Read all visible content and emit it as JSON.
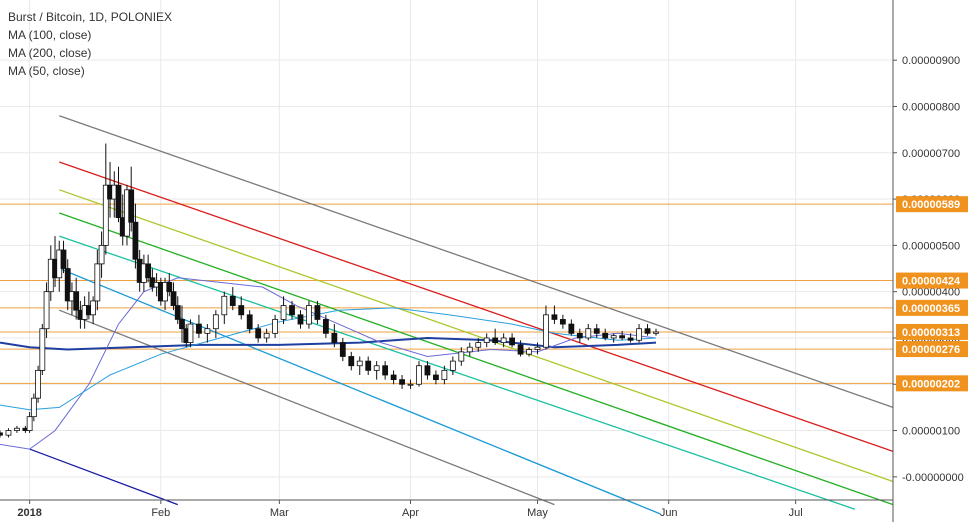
{
  "legend": {
    "title": "Burst / Bitcoin, 1D, POLONIEX",
    "ma100": "MA (100, close)",
    "ma200": "MA (200, close)",
    "ma50": "MA (50, close)"
  },
  "colors": {
    "up": "#ffffff",
    "down": "#111111",
    "candle_border": "#111111",
    "grid": "#e9e9e9",
    "hline": "#f0a040",
    "tag": "#f0921e",
    "ma100": "#1f3fa0",
    "ma50": "#6a6ad8",
    "ma200": "#2a9fe0",
    "channel_gray": "#7a7a7a",
    "fan_red": "#d91c1c",
    "fan_yellowgreen": "#a8c82c",
    "fan_green": "#22b022",
    "fan_teal": "#1cc0a0",
    "fan_blue": "#1a9ad6",
    "navy": "#1a1aa8"
  },
  "chart_data": {
    "type": "candlestick",
    "title": "Burst / Bitcoin, 1D, POLONIEX",
    "y_axis": {
      "ticks": [
        "0.00000900",
        "0.00000800",
        "0.00000700",
        "0.00000600",
        "0.00000500",
        "0.00000400",
        "0.00000300",
        "0.00000200",
        "0.00000100",
        "-0.00000000"
      ],
      "tick_values": [
        9,
        8,
        7,
        6,
        5,
        4,
        3,
        2,
        1,
        0
      ],
      "unit_scale": "1e-6 BTC",
      "range": [
        -0.5,
        10.3
      ]
    },
    "x_axis": {
      "labels": [
        "2018",
        "Feb",
        "Mar",
        "Apr",
        "May",
        "Jun",
        "Jul"
      ],
      "bold_labels": [
        "2018"
      ],
      "start_date": "2017-12-25",
      "end_date": "2018-07-24"
    },
    "price_lines": [
      {
        "value": 5.89,
        "label": "0.00000589"
      },
      {
        "value": 4.24,
        "label": "0.00000424"
      },
      {
        "value": 3.65,
        "label": "0.00000365"
      },
      {
        "value": 3.13,
        "label": "0.00000313"
      },
      {
        "value": 2.76,
        "label": "0.00000276"
      },
      {
        "value": 2.02,
        "label": "0.00000202"
      }
    ],
    "trend_lines": [
      {
        "color": "channel_gray",
        "from": {
          "date": "2018-01-08",
          "value": 7.8
        },
        "to": {
          "date": "2018-07-24",
          "value": 1.5
        }
      },
      {
        "color": "channel_gray",
        "from": {
          "date": "2018-01-08",
          "value": 3.6
        },
        "to": {
          "date": "2018-05-05",
          "value": -0.6
        }
      },
      {
        "color": "fan_red",
        "from": {
          "date": "2018-01-08",
          "value": 6.8
        },
        "to": {
          "date": "2018-07-24",
          "value": 0.55
        }
      },
      {
        "color": "fan_yellowgreen",
        "from": {
          "date": "2018-01-08",
          "value": 6.2
        },
        "to": {
          "date": "2018-07-24",
          "value": -0.1
        }
      },
      {
        "color": "fan_green",
        "from": {
          "date": "2018-01-08",
          "value": 5.7
        },
        "to": {
          "date": "2018-07-24",
          "value": -0.6
        }
      },
      {
        "color": "fan_teal",
        "from": {
          "date": "2018-01-08",
          "value": 5.2
        },
        "to": {
          "date": "2018-07-15",
          "value": -0.7
        }
      },
      {
        "color": "fan_blue",
        "from": {
          "date": "2018-01-08",
          "value": 4.5
        },
        "to": {
          "date": "2018-05-30",
          "value": -0.8
        }
      },
      {
        "color": "navy",
        "from": {
          "date": "2018-01-01",
          "value": 0.6
        },
        "to": {
          "date": "2018-02-05",
          "value": -0.6
        }
      }
    ],
    "ma_series": [
      {
        "name": "MA (100, close)",
        "color": "ma100",
        "width": 2,
        "points": [
          [
            "2017-12-25",
            2.9
          ],
          [
            "2018-01-01",
            2.8
          ],
          [
            "2018-01-10",
            2.75
          ],
          [
            "2018-01-25",
            2.8
          ],
          [
            "2018-02-10",
            2.85
          ],
          [
            "2018-03-01",
            2.85
          ],
          [
            "2018-03-20",
            2.9
          ],
          [
            "2018-04-05",
            3.0
          ],
          [
            "2018-04-20",
            2.95
          ],
          [
            "2018-05-05",
            2.8
          ],
          [
            "2018-05-20",
            2.85
          ],
          [
            "2018-05-29",
            2.9
          ]
        ]
      },
      {
        "name": "MA (50, close)",
        "color": "ma50",
        "width": 1,
        "points": [
          [
            "2017-12-25",
            0.7
          ],
          [
            "2018-01-01",
            0.6
          ],
          [
            "2018-01-07",
            1.0
          ],
          [
            "2018-01-15",
            2.0
          ],
          [
            "2018-01-22",
            3.3
          ],
          [
            "2018-01-28",
            4.0
          ],
          [
            "2018-02-05",
            4.3
          ],
          [
            "2018-02-15",
            4.2
          ],
          [
            "2018-02-25",
            4.1
          ],
          [
            "2018-03-05",
            3.7
          ],
          [
            "2018-03-15",
            3.3
          ],
          [
            "2018-03-25",
            2.9
          ],
          [
            "2018-04-05",
            2.6
          ],
          [
            "2018-04-20",
            2.75
          ],
          [
            "2018-05-01",
            2.7
          ],
          [
            "2018-05-10",
            3.0
          ],
          [
            "2018-05-20",
            3.1
          ],
          [
            "2018-05-29",
            3.0
          ]
        ]
      },
      {
        "name": "MA (200, close)",
        "color": "ma200",
        "width": 1,
        "points": [
          [
            "2017-12-25",
            1.55
          ],
          [
            "2018-01-01",
            1.45
          ],
          [
            "2018-01-08",
            1.5
          ],
          [
            "2018-01-20",
            2.2
          ],
          [
            "2018-02-01",
            2.65
          ],
          [
            "2018-02-15",
            3.0
          ],
          [
            "2018-03-01",
            3.35
          ],
          [
            "2018-03-15",
            3.6
          ],
          [
            "2018-03-28",
            3.65
          ],
          [
            "2018-04-10",
            3.5
          ],
          [
            "2018-04-25",
            3.3
          ],
          [
            "2018-05-05",
            3.1
          ],
          [
            "2018-05-20",
            2.95
          ],
          [
            "2018-05-29",
            3.0
          ]
        ]
      }
    ],
    "candles": [
      [
        "2017-12-25",
        0.95,
        1.0,
        0.85,
        0.9
      ],
      [
        "2017-12-27",
        0.9,
        1.05,
        0.85,
        1.0
      ],
      [
        "2017-12-29",
        1.0,
        1.1,
        0.95,
        1.05
      ],
      [
        "2017-12-31",
        1.05,
        1.1,
        0.95,
        1.0
      ],
      [
        "2018-01-01",
        1.0,
        1.4,
        0.95,
        1.3
      ],
      [
        "2018-01-02",
        1.3,
        1.8,
        1.2,
        1.7
      ],
      [
        "2018-01-03",
        1.7,
        2.4,
        1.6,
        2.3
      ],
      [
        "2018-01-04",
        2.3,
        3.3,
        2.2,
        3.2
      ],
      [
        "2018-01-05",
        3.2,
        4.2,
        3.0,
        4.0
      ],
      [
        "2018-01-06",
        4.0,
        5.0,
        3.8,
        4.7
      ],
      [
        "2018-01-07",
        4.7,
        5.2,
        4.1,
        4.3
      ],
      [
        "2018-01-08",
        4.3,
        5.1,
        4.0,
        4.9
      ],
      [
        "2018-01-09",
        4.9,
        5.1,
        4.4,
        4.5
      ],
      [
        "2018-01-10",
        4.5,
        4.7,
        3.6,
        3.8
      ],
      [
        "2018-01-11",
        3.8,
        4.2,
        3.5,
        4.0
      ],
      [
        "2018-01-12",
        4.0,
        4.3,
        3.4,
        3.6
      ],
      [
        "2018-01-13",
        3.6,
        3.8,
        3.2,
        3.4
      ],
      [
        "2018-01-14",
        3.4,
        3.9,
        3.2,
        3.7
      ],
      [
        "2018-01-15",
        3.7,
        4.0,
        3.4,
        3.5
      ],
      [
        "2018-01-16",
        3.5,
        3.9,
        3.3,
        3.8
      ],
      [
        "2018-01-17",
        3.8,
        4.9,
        3.6,
        4.6
      ],
      [
        "2018-01-18",
        4.6,
        5.3,
        4.3,
        5.0
      ],
      [
        "2018-01-19",
        5.0,
        7.2,
        4.8,
        6.3
      ],
      [
        "2018-01-20",
        6.3,
        6.8,
        5.6,
        6.0
      ],
      [
        "2018-01-21",
        6.0,
        6.6,
        5.6,
        6.3
      ],
      [
        "2018-01-22",
        6.3,
        6.7,
        5.5,
        5.6
      ],
      [
        "2018-01-23",
        5.6,
        6.1,
        5.0,
        5.2
      ],
      [
        "2018-01-24",
        5.2,
        6.3,
        5.0,
        6.2
      ],
      [
        "2018-01-25",
        6.2,
        6.7,
        5.3,
        5.5
      ],
      [
        "2018-01-26",
        5.5,
        5.9,
        4.5,
        4.7
      ],
      [
        "2018-01-27",
        4.7,
        4.9,
        4.0,
        4.2
      ],
      [
        "2018-01-28",
        4.2,
        4.8,
        4.0,
        4.6
      ],
      [
        "2018-01-29",
        4.6,
        4.8,
        4.2,
        4.3
      ],
      [
        "2018-01-30",
        4.3,
        4.5,
        4.0,
        4.1
      ],
      [
        "2018-01-31",
        4.1,
        4.4,
        3.9,
        4.2
      ],
      [
        "2018-02-01",
        4.2,
        4.3,
        3.7,
        3.8
      ],
      [
        "2018-02-02",
        3.8,
        4.3,
        3.6,
        4.2
      ],
      [
        "2018-02-03",
        4.2,
        4.4,
        3.9,
        4.0
      ],
      [
        "2018-02-04",
        4.0,
        4.2,
        3.6,
        3.7
      ],
      [
        "2018-02-05",
        3.7,
        3.9,
        3.3,
        3.4
      ],
      [
        "2018-02-06",
        3.4,
        3.7,
        2.9,
        3.2
      ],
      [
        "2018-02-07",
        3.2,
        3.3,
        2.8,
        2.9
      ],
      [
        "2018-02-08",
        2.9,
        3.4,
        2.8,
        3.3
      ],
      [
        "2018-02-10",
        3.3,
        3.5,
        3.0,
        3.1
      ],
      [
        "2018-02-12",
        3.1,
        3.3,
        2.9,
        3.2
      ],
      [
        "2018-02-14",
        3.2,
        3.6,
        3.0,
        3.5
      ],
      [
        "2018-02-16",
        3.5,
        4.0,
        3.3,
        3.9
      ],
      [
        "2018-02-18",
        3.9,
        4.1,
        3.6,
        3.7
      ],
      [
        "2018-02-20",
        3.7,
        3.9,
        3.4,
        3.5
      ],
      [
        "2018-02-22",
        3.5,
        3.6,
        3.1,
        3.2
      ],
      [
        "2018-02-24",
        3.2,
        3.3,
        2.9,
        3.0
      ],
      [
        "2018-02-26",
        3.0,
        3.2,
        2.9,
        3.1
      ],
      [
        "2018-02-28",
        3.1,
        3.5,
        3.0,
        3.4
      ],
      [
        "2018-03-02",
        3.4,
        3.9,
        3.3,
        3.7
      ],
      [
        "2018-03-04",
        3.7,
        3.8,
        3.4,
        3.5
      ],
      [
        "2018-03-06",
        3.5,
        3.6,
        3.2,
        3.3
      ],
      [
        "2018-03-08",
        3.3,
        3.8,
        3.2,
        3.7
      ],
      [
        "2018-03-10",
        3.7,
        3.8,
        3.3,
        3.4
      ],
      [
        "2018-03-12",
        3.4,
        3.5,
        3.0,
        3.1
      ],
      [
        "2018-03-14",
        3.1,
        3.3,
        2.8,
        2.9
      ],
      [
        "2018-03-16",
        2.9,
        3.0,
        2.5,
        2.6
      ],
      [
        "2018-03-18",
        2.6,
        2.7,
        2.3,
        2.4
      ],
      [
        "2018-03-20",
        2.4,
        2.6,
        2.2,
        2.5
      ],
      [
        "2018-03-22",
        2.5,
        2.6,
        2.2,
        2.3
      ],
      [
        "2018-03-24",
        2.3,
        2.5,
        2.1,
        2.4
      ],
      [
        "2018-03-26",
        2.4,
        2.5,
        2.1,
        2.2
      ],
      [
        "2018-03-28",
        2.2,
        2.3,
        2.0,
        2.1
      ],
      [
        "2018-03-30",
        2.1,
        2.2,
        1.9,
        2.0
      ],
      [
        "2018-04-01",
        2.0,
        2.1,
        1.9,
        2.0
      ],
      [
        "2018-04-03",
        2.0,
        2.5,
        1.95,
        2.4
      ],
      [
        "2018-04-05",
        2.4,
        2.5,
        2.1,
        2.2
      ],
      [
        "2018-04-07",
        2.2,
        2.3,
        2.0,
        2.1
      ],
      [
        "2018-04-09",
        2.1,
        2.4,
        2.0,
        2.3
      ],
      [
        "2018-04-11",
        2.3,
        2.6,
        2.2,
        2.5
      ],
      [
        "2018-04-13",
        2.5,
        2.8,
        2.4,
        2.7
      ],
      [
        "2018-04-15",
        2.7,
        2.9,
        2.6,
        2.8
      ],
      [
        "2018-04-17",
        2.8,
        3.0,
        2.7,
        2.9
      ],
      [
        "2018-04-19",
        2.9,
        3.1,
        2.8,
        3.0
      ],
      [
        "2018-04-21",
        3.0,
        3.2,
        2.85,
        2.9
      ],
      [
        "2018-04-23",
        2.9,
        3.1,
        2.8,
        3.0
      ],
      [
        "2018-04-25",
        3.0,
        3.1,
        2.8,
        2.85
      ],
      [
        "2018-04-27",
        2.85,
        2.95,
        2.6,
        2.65
      ],
      [
        "2018-04-29",
        2.65,
        2.8,
        2.6,
        2.75
      ],
      [
        "2018-05-01",
        2.75,
        2.9,
        2.65,
        2.8
      ],
      [
        "2018-05-03",
        2.8,
        3.7,
        2.75,
        3.5
      ],
      [
        "2018-05-05",
        3.5,
        3.7,
        3.3,
        3.4
      ],
      [
        "2018-05-07",
        3.4,
        3.5,
        3.2,
        3.3
      ],
      [
        "2018-05-09",
        3.3,
        3.4,
        3.05,
        3.1
      ],
      [
        "2018-05-11",
        3.1,
        3.2,
        2.9,
        3.0
      ],
      [
        "2018-05-13",
        3.0,
        3.3,
        2.95,
        3.2
      ],
      [
        "2018-05-15",
        3.2,
        3.3,
        3.0,
        3.1
      ],
      [
        "2018-05-17",
        3.1,
        3.2,
        2.95,
        3.0
      ],
      [
        "2018-05-19",
        3.0,
        3.1,
        2.9,
        3.05
      ],
      [
        "2018-05-21",
        3.05,
        3.15,
        2.95,
        3.0
      ],
      [
        "2018-05-23",
        3.0,
        3.1,
        2.9,
        2.95
      ],
      [
        "2018-05-25",
        2.95,
        3.3,
        2.9,
        3.2
      ],
      [
        "2018-05-27",
        3.2,
        3.3,
        3.05,
        3.1
      ],
      [
        "2018-05-29",
        3.1,
        3.2,
        3.05,
        3.13
      ]
    ]
  }
}
